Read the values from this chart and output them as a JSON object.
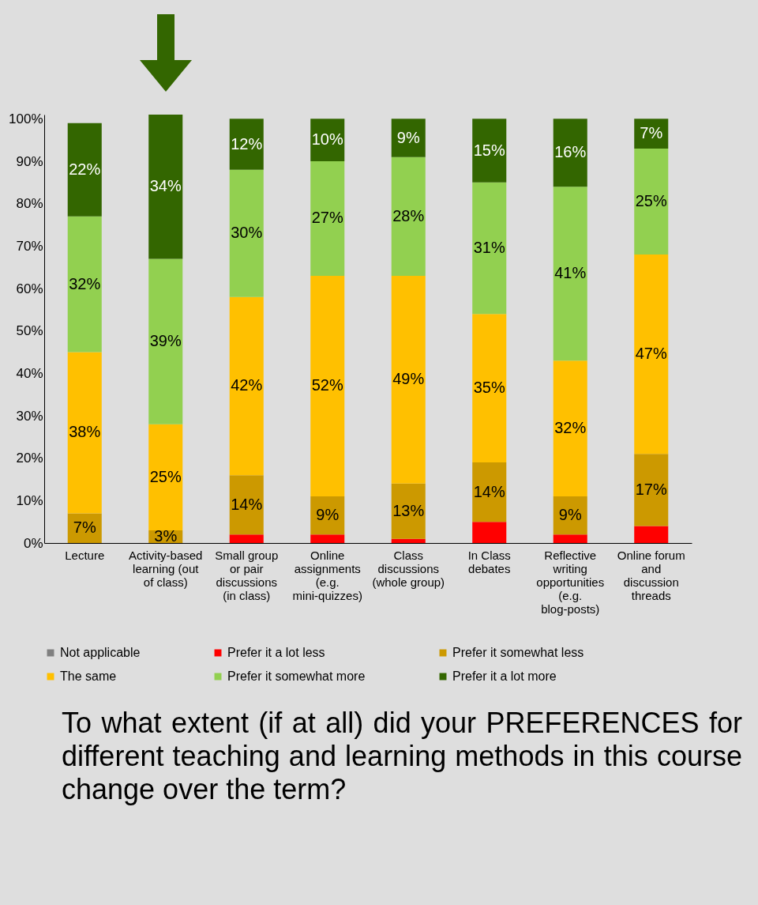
{
  "chart_data": {
    "type": "bar",
    "stacked": true,
    "title": "To what extent (if at all) did your PREFERENCES for different teaching and learning methods in this course change over the term?",
    "categories": [
      "Lecture",
      "Activity-based learning (out of class)",
      "Small group or pair discussions (in class)",
      "Online assignments (e.g. mini-quizzes)",
      "Class discussions (whole group)",
      "In Class debates",
      "Reflective writing opportunities (e.g. blog-posts)",
      "Online forum and discussion threads"
    ],
    "ylim": [
      0,
      101
    ],
    "yticks": [
      {
        "value": 0,
        "label": "0%"
      },
      {
        "value": 10,
        "label": "10%"
      },
      {
        "value": 20,
        "label": "20%"
      },
      {
        "value": 30,
        "label": "30%"
      },
      {
        "value": 40,
        "label": "40%"
      },
      {
        "value": 50,
        "label": "50%"
      },
      {
        "value": 60,
        "label": "60%"
      },
      {
        "value": 70,
        "label": "70%"
      },
      {
        "value": 80,
        "label": "80%"
      },
      {
        "value": 90,
        "label": "90%"
      },
      {
        "value": 100,
        "label": "100%"
      }
    ],
    "legend": "bottom",
    "series": [
      {
        "name": "Not applicable",
        "color": "#808080",
        "values": [
          0,
          0,
          0,
          0,
          0,
          0,
          0,
          0
        ],
        "value_labels": [
          null,
          null,
          null,
          null,
          null,
          null,
          null,
          null
        ]
      },
      {
        "name": "Prefer it a lot less",
        "color": "#ff0000",
        "values": [
          0,
          0,
          2,
          2,
          1,
          5,
          2,
          4
        ],
        "value_labels": [
          null,
          null,
          null,
          null,
          null,
          null,
          null,
          null
        ]
      },
      {
        "name": "Prefer it somewhat less",
        "color": "#cc9900",
        "values": [
          7,
          3,
          14,
          9,
          13,
          14,
          9,
          17
        ],
        "value_labels": [
          "7%",
          "3%",
          "14%",
          "9%",
          "13%",
          "14%",
          "9%",
          "17%"
        ]
      },
      {
        "name": "The same",
        "color": "#ffc000",
        "values": [
          38,
          25,
          42,
          52,
          49,
          35,
          32,
          47
        ],
        "value_labels": [
          "38%",
          "25%",
          "42%",
          "52%",
          "49%",
          "35%",
          "32%",
          "47%"
        ]
      },
      {
        "name": "Prefer it somewhat more",
        "color": "#92d050",
        "values": [
          32,
          39,
          30,
          27,
          28,
          31,
          41,
          25
        ],
        "value_labels": [
          "32%",
          "39%",
          "30%",
          "27%",
          "28%",
          "31%",
          "41%",
          "25%"
        ]
      },
      {
        "name": "Prefer it a lot more",
        "color": "#336600",
        "values": [
          22,
          34,
          12,
          10,
          9,
          15,
          16,
          7
        ],
        "value_labels": [
          "22%",
          "34%",
          "12%",
          "10%",
          "9%",
          "15%",
          "16%",
          "7%"
        ]
      }
    ]
  }
}
